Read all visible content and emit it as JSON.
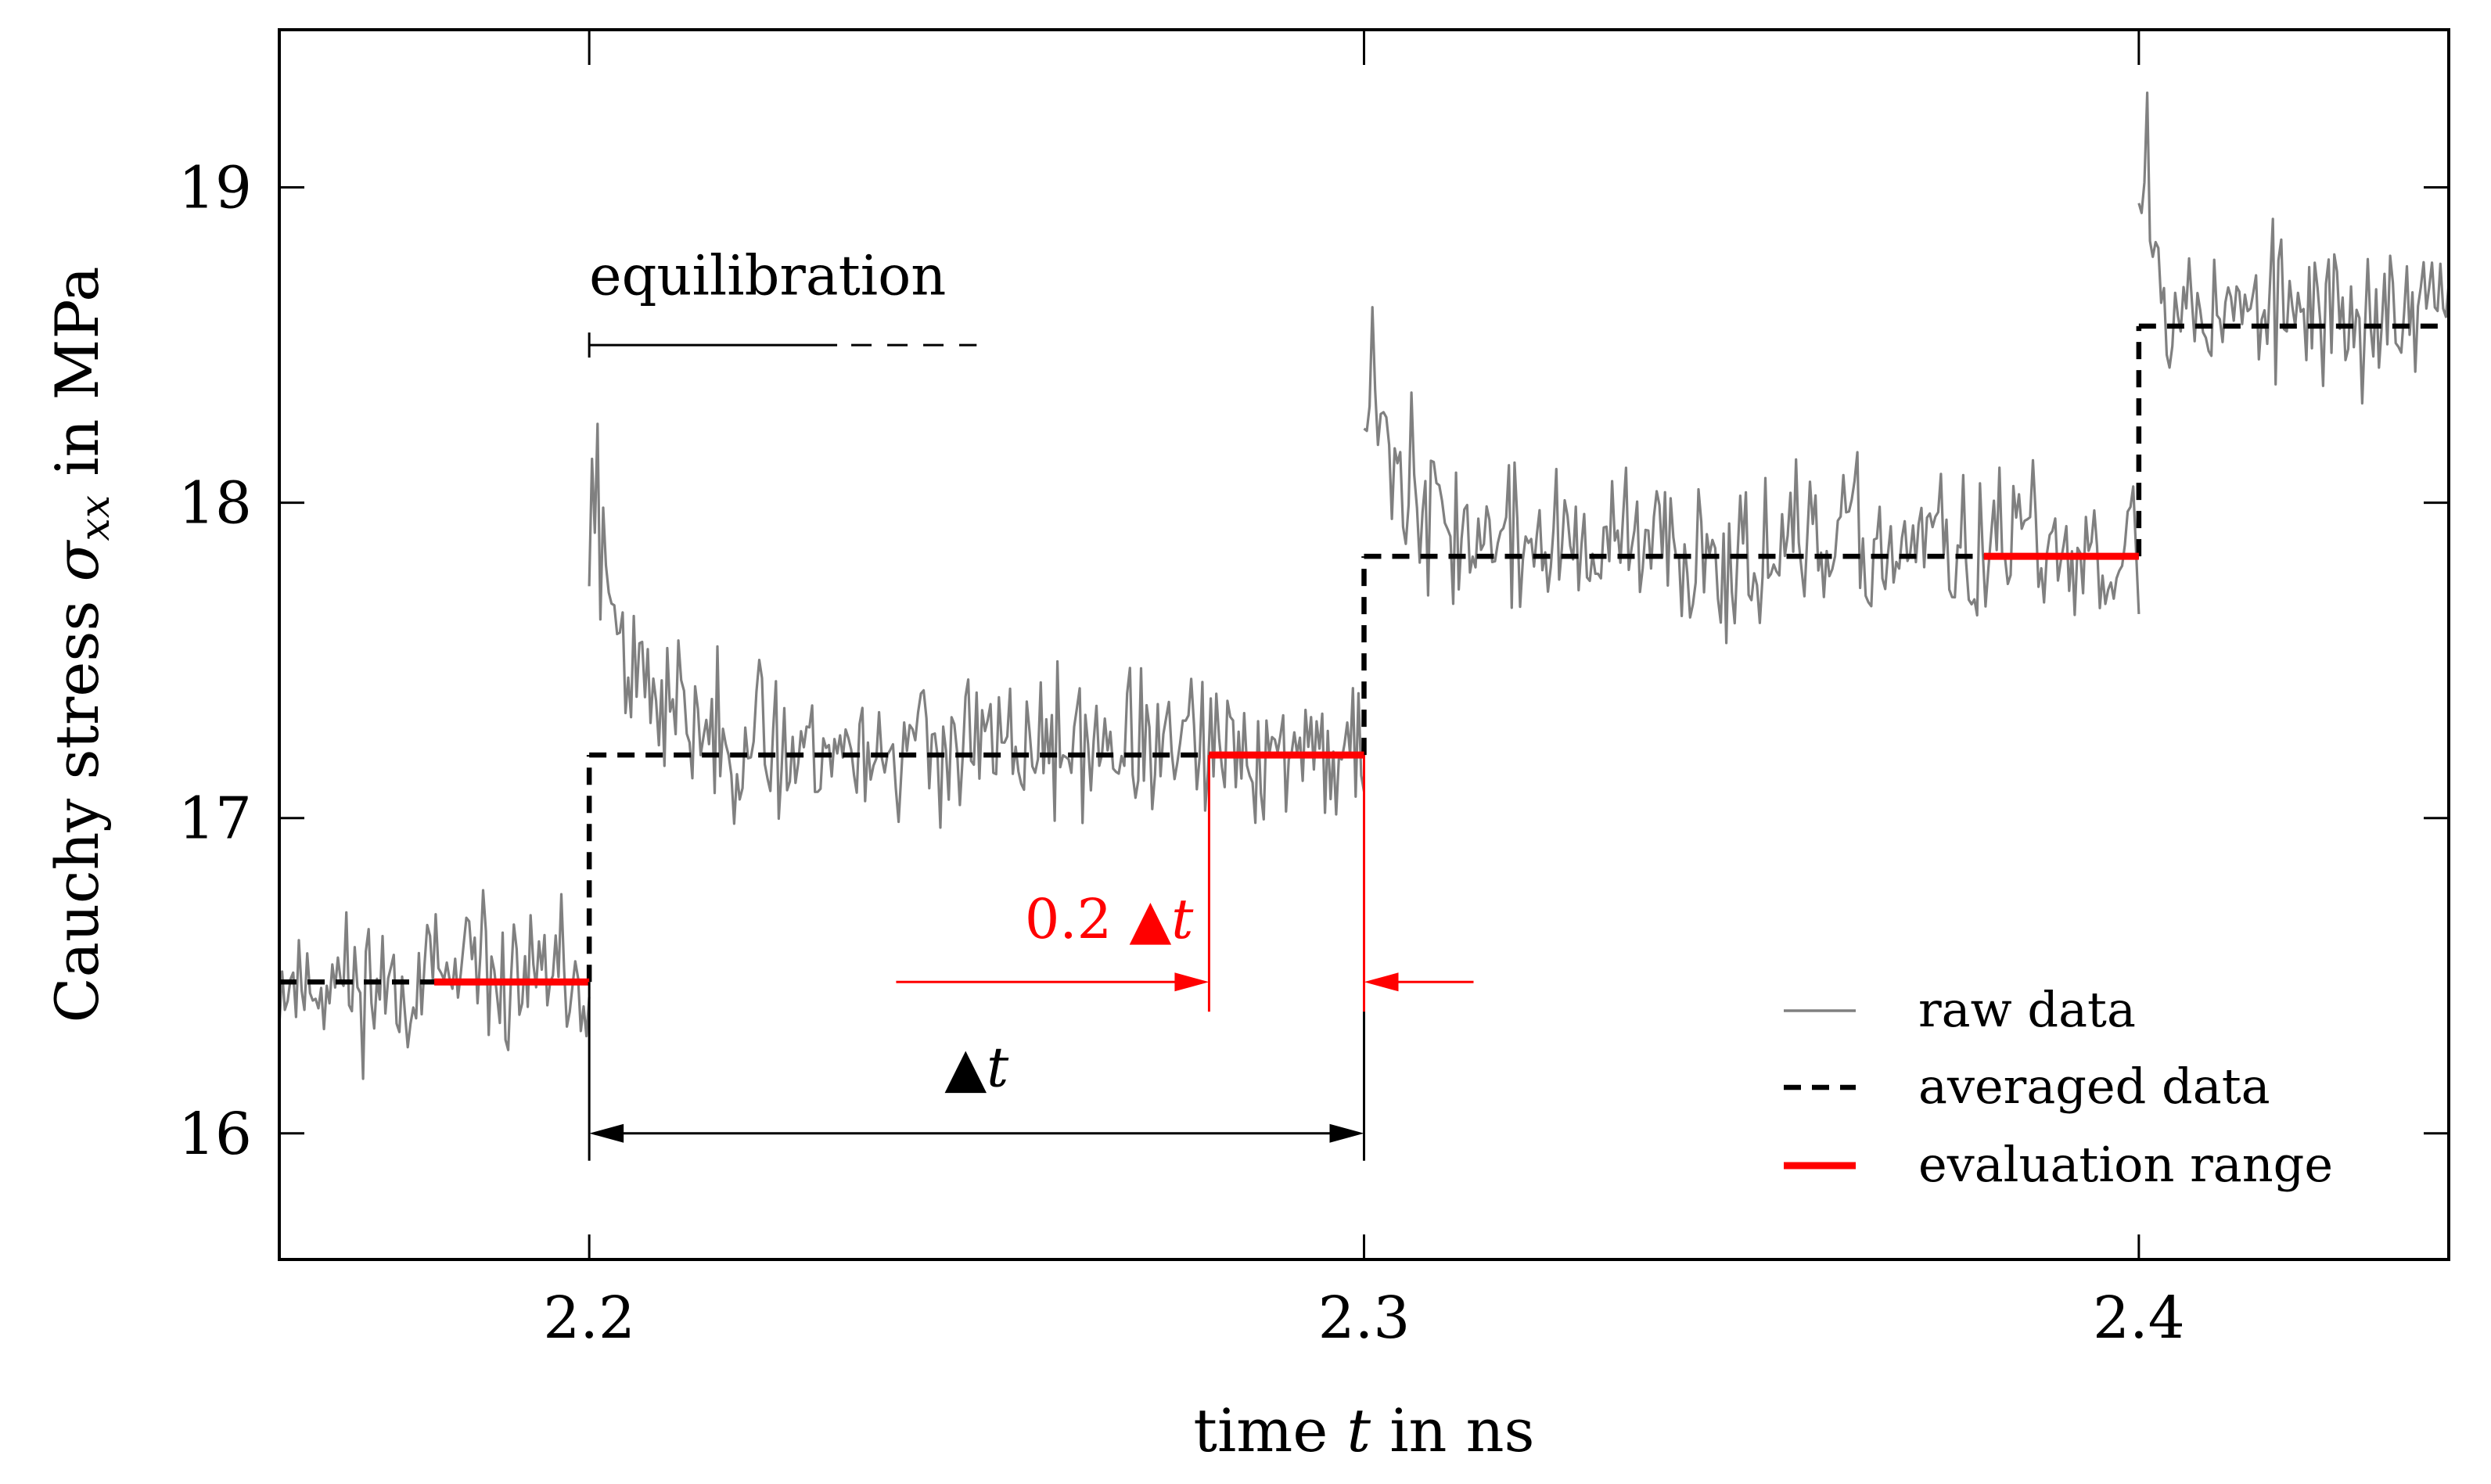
{
  "chart_data": {
    "type": "line",
    "title": "",
    "xlabel": {
      "pre": "time ",
      "var": "t",
      "post": " in ns"
    },
    "ylabel": {
      "pre": "Cauchy stress ",
      "var": "σ",
      "sub": "xx",
      "post": " in MPa"
    },
    "xlim": [
      2.16,
      2.44
    ],
    "ylim": [
      15.6,
      19.5
    ],
    "x_ticks": [
      2.2,
      2.3,
      2.4
    ],
    "x_tick_labels": [
      "2.2",
      "2.3",
      "2.4"
    ],
    "y_ticks": [
      16,
      17,
      18,
      19
    ],
    "y_tick_labels": [
      "16",
      "17",
      "18",
      "19"
    ],
    "step_edges": [
      2.2,
      2.3,
      2.4
    ],
    "series": [
      {
        "name": "raw data",
        "style": "solid-thin",
        "color": "#808080",
        "segments": [
          {
            "x_start": 2.16,
            "x_end": 2.2,
            "mean": 16.48,
            "noise": 0.14,
            "peak": 16.8,
            "seed": 11
          },
          {
            "x_start": 2.2,
            "x_end": 2.3,
            "mean": 17.22,
            "noise": 0.14,
            "peak": 18.25,
            "seed": 23
          },
          {
            "x_start": 2.3,
            "x_end": 2.4,
            "mean": 17.85,
            "noise": 0.15,
            "peak": 18.62,
            "seed": 37
          },
          {
            "x_start": 2.4,
            "x_end": 2.44,
            "mean": 18.6,
            "noise": 0.15,
            "peak": 19.3,
            "seed": 53
          }
        ]
      },
      {
        "name": "averaged data",
        "style": "dashed",
        "color": "#000000",
        "levels": [
          {
            "x_start": 2.16,
            "x_end": 2.2,
            "y": 16.48
          },
          {
            "x_start": 2.2,
            "x_end": 2.3,
            "y": 17.2
          },
          {
            "x_start": 2.3,
            "x_end": 2.4,
            "y": 17.83
          },
          {
            "x_start": 2.4,
            "x_end": 2.44,
            "y": 18.56
          }
        ]
      },
      {
        "name": "evaluation range",
        "style": "solid-thick",
        "color": "#ff0000",
        "ranges": [
          {
            "x_start": 2.18,
            "x_end": 2.2,
            "y": 16.48
          },
          {
            "x_start": 2.28,
            "x_end": 2.3,
            "y": 17.2
          },
          {
            "x_start": 2.38,
            "x_end": 2.4,
            "y": 17.83
          }
        ]
      }
    ],
    "annotations": {
      "equilibration": {
        "label": "equilibration",
        "x_start": 2.2,
        "x_solid_end": 2.232,
        "x_end": 2.25,
        "y": 18.5,
        "label_y": 18.66
      },
      "delta_t": {
        "symbol": "▲",
        "var": "t",
        "x_start": 2.2,
        "x_end": 2.3,
        "y": 16.0,
        "label_y": 16.15
      },
      "fraction": {
        "prefix": "0.2 ",
        "symbol": "▲",
        "var": "t",
        "x_start": 2.28,
        "x_end": 2.3,
        "y": 16.48,
        "label_y": 16.62,
        "color": "#ff0000"
      }
    },
    "legend": {
      "position": "bottom-right",
      "entries": [
        "raw data",
        "averaged data",
        "evaluation range"
      ]
    }
  }
}
